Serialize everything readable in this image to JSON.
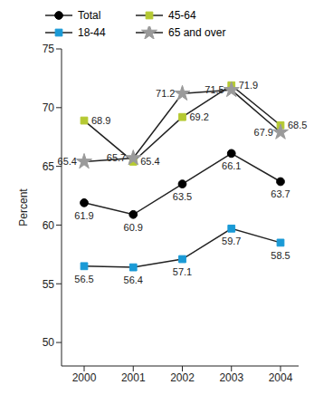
{
  "chart_data": {
    "type": "line",
    "y_label": "Percent",
    "categories": [
      "2000",
      "2001",
      "2002",
      "2003",
      "2004"
    ],
    "series": [
      {
        "name": "Total",
        "color": "#000000",
        "marker": "circle",
        "values": [
          61.9,
          60.9,
          63.5,
          66.1,
          63.7
        ]
      },
      {
        "name": "18-44",
        "color": "#1a9ad6",
        "marker": "square",
        "values": [
          56.5,
          56.4,
          57.1,
          59.7,
          58.5
        ]
      },
      {
        "name": "45-64",
        "color": "#b5c932",
        "marker": "square",
        "values": [
          68.9,
          65.4,
          69.2,
          71.9,
          68.5
        ]
      },
      {
        "name": "65 and over",
        "color": "#9a9a9a",
        "marker": "star",
        "values": [
          65.4,
          65.7,
          71.2,
          71.5,
          67.9
        ]
      }
    ],
    "ylim": [
      48,
      75
    ],
    "yticks": [
      50,
      55,
      60,
      65,
      70,
      75
    ],
    "data_labels": true
  }
}
